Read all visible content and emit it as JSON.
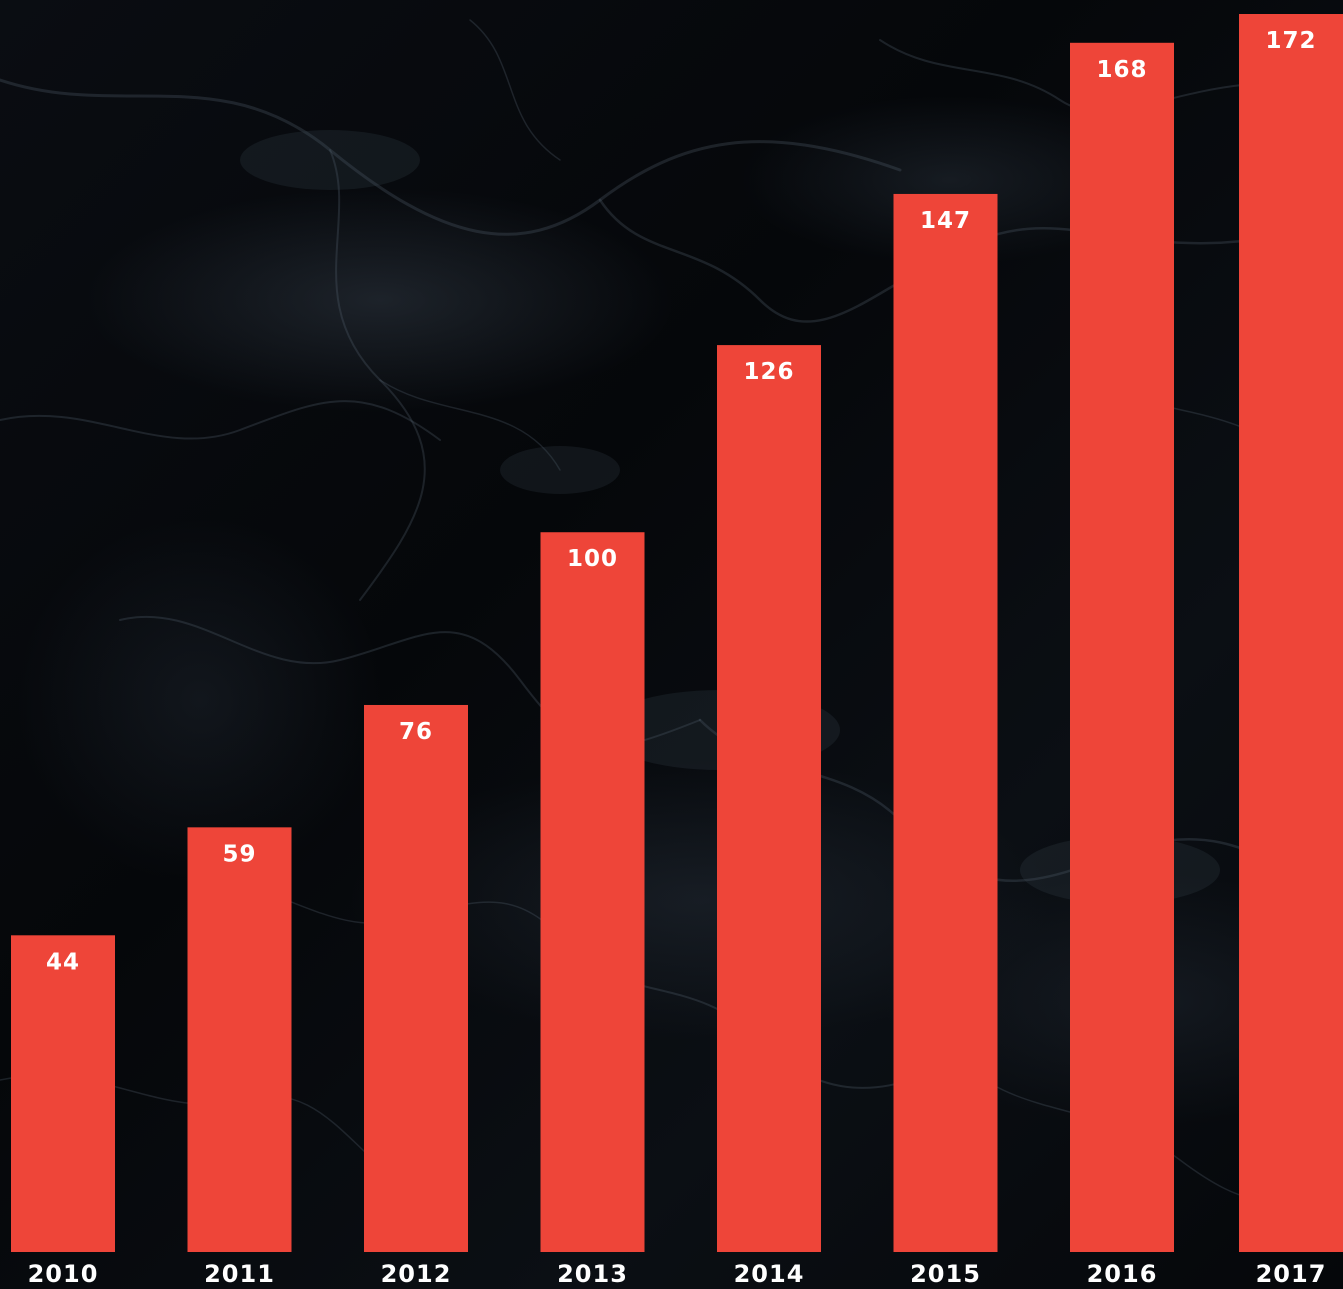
{
  "chart_data": {
    "type": "bar",
    "categories": [
      "2010",
      "2011",
      "2012",
      "2013",
      "2014",
      "2015",
      "2016",
      "2017"
    ],
    "values": [
      44,
      59,
      76,
      100,
      126,
      147,
      168,
      172
    ],
    "title": "",
    "xlabel": "",
    "ylabel": "",
    "ylim": [
      0,
      172
    ],
    "grid": false,
    "data_labels": true,
    "bar_color": "#EE4539",
    "label_color": "#FFFFFF",
    "background": "dark marble texture"
  }
}
